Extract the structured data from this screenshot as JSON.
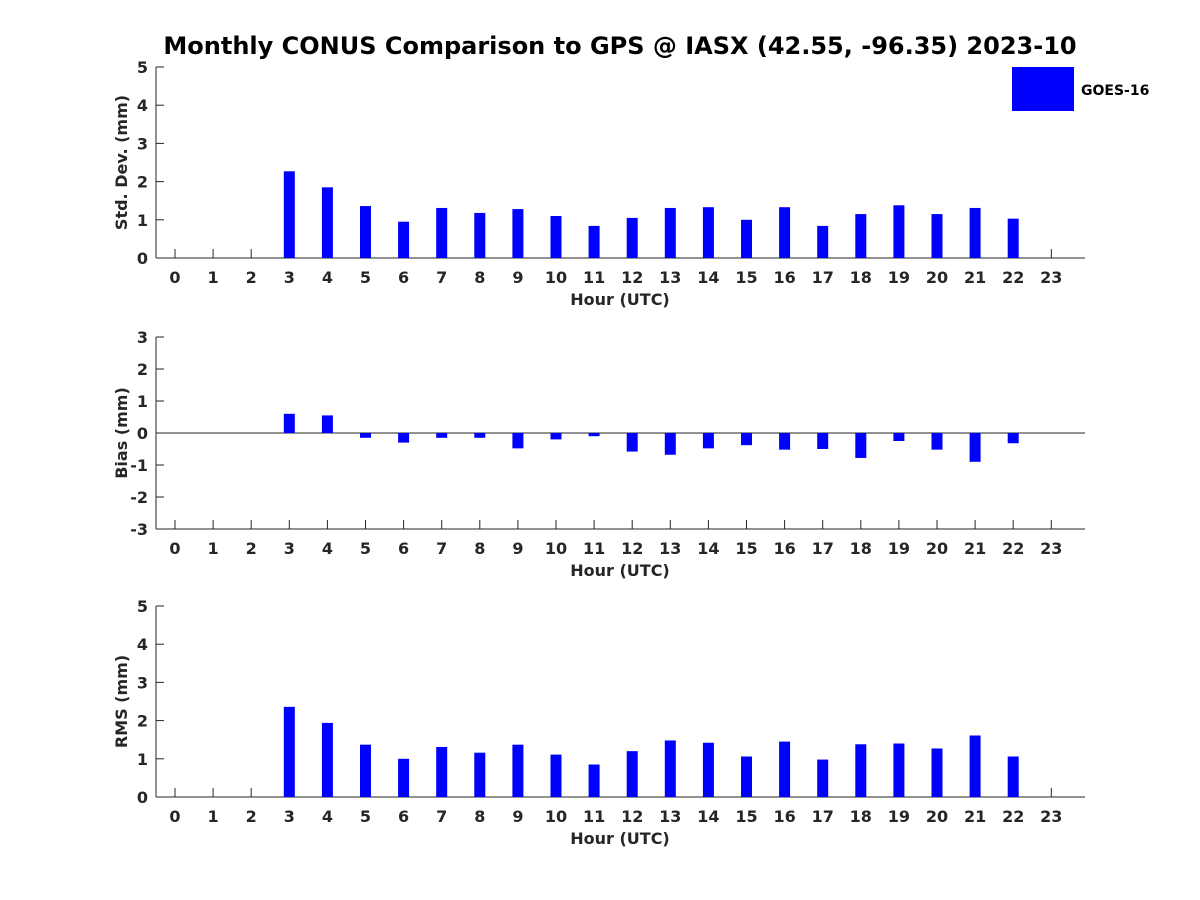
{
  "title": "Monthly CONUS Comparison to GPS @ IASX (42.55, -96.35) 2023-10",
  "legend": {
    "label": "GOES-16",
    "color": "#0000ff"
  },
  "chart_data": [
    {
      "type": "bar",
      "ylabel": "Std. Dev. (mm)",
      "xlabel": "Hour (UTC)",
      "categories": [
        "0",
        "1",
        "2",
        "3",
        "4",
        "5",
        "6",
        "7",
        "8",
        "9",
        "10",
        "11",
        "12",
        "13",
        "14",
        "15",
        "16",
        "17",
        "18",
        "19",
        "20",
        "21",
        "22",
        "23"
      ],
      "ylim": [
        0,
        5
      ],
      "yticks": [
        0,
        1,
        2,
        3,
        4,
        5
      ],
      "zero_line": false,
      "series": [
        {
          "name": "GOES-16",
          "values": [
            null,
            null,
            null,
            2.27,
            1.85,
            1.36,
            0.95,
            1.31,
            1.18,
            1.28,
            1.1,
            0.84,
            1.05,
            1.31,
            1.33,
            1.0,
            1.33,
            0.84,
            1.15,
            1.38,
            1.15,
            1.31,
            1.03,
            null
          ]
        }
      ]
    },
    {
      "type": "bar",
      "ylabel": "Bias (mm)",
      "xlabel": "Hour (UTC)",
      "categories": [
        "0",
        "1",
        "2",
        "3",
        "4",
        "5",
        "6",
        "7",
        "8",
        "9",
        "10",
        "11",
        "12",
        "13",
        "14",
        "15",
        "16",
        "17",
        "18",
        "19",
        "20",
        "21",
        "22",
        "23"
      ],
      "ylim": [
        -3,
        3
      ],
      "yticks": [
        -3,
        -2,
        -1,
        0,
        1,
        2,
        3
      ],
      "zero_line": true,
      "series": [
        {
          "name": "GOES-16",
          "values": [
            null,
            null,
            null,
            0.6,
            0.55,
            -0.15,
            -0.3,
            -0.15,
            -0.15,
            -0.48,
            -0.2,
            -0.1,
            -0.58,
            -0.68,
            -0.48,
            -0.38,
            -0.52,
            -0.5,
            -0.78,
            -0.25,
            -0.52,
            -0.9,
            -0.32,
            null
          ]
        }
      ]
    },
    {
      "type": "bar",
      "ylabel": "RMS (mm)",
      "xlabel": "Hour (UTC)",
      "categories": [
        "0",
        "1",
        "2",
        "3",
        "4",
        "5",
        "6",
        "7",
        "8",
        "9",
        "10",
        "11",
        "12",
        "13",
        "14",
        "15",
        "16",
        "17",
        "18",
        "19",
        "20",
        "21",
        "22",
        "23"
      ],
      "ylim": [
        0,
        5
      ],
      "yticks": [
        0,
        1,
        2,
        3,
        4,
        5
      ],
      "zero_line": false,
      "series": [
        {
          "name": "GOES-16",
          "values": [
            null,
            null,
            null,
            2.36,
            1.94,
            1.37,
            1.0,
            1.31,
            1.16,
            1.37,
            1.11,
            0.85,
            1.2,
            1.48,
            1.42,
            1.06,
            1.45,
            0.98,
            1.38,
            1.4,
            1.27,
            1.61,
            1.06,
            null
          ]
        }
      ]
    }
  ]
}
